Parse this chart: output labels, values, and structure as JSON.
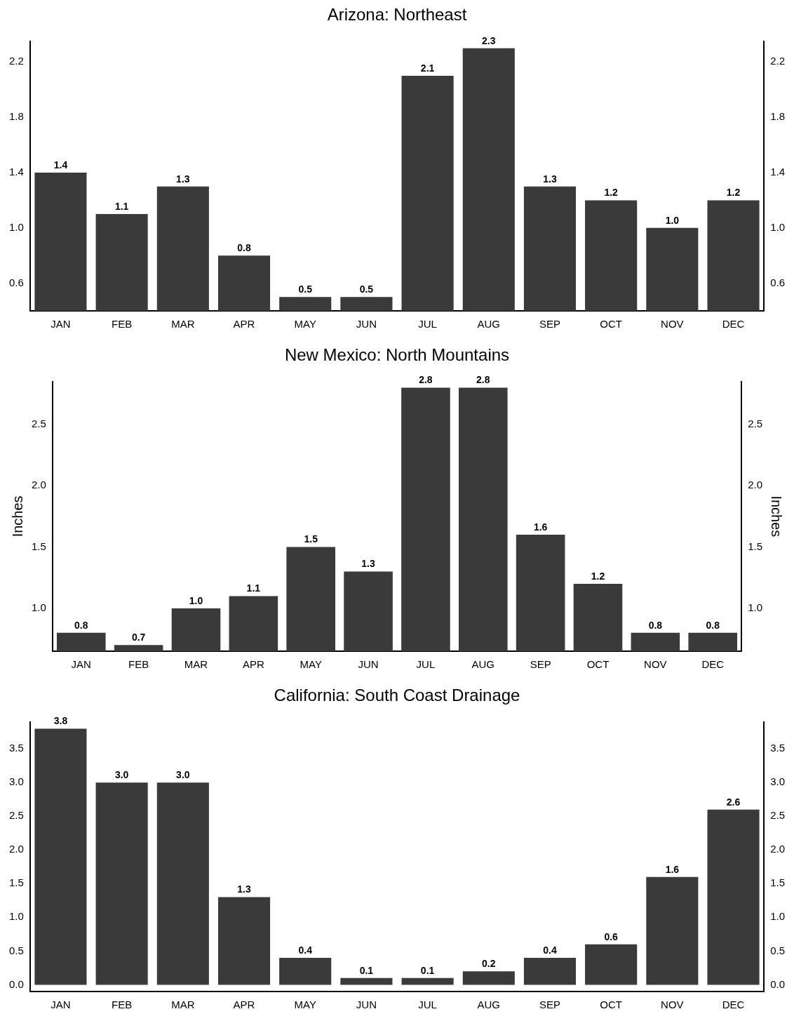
{
  "chart_data": [
    {
      "type": "bar",
      "title": "Arizona: Northeast",
      "categories": [
        "JAN",
        "FEB",
        "MAR",
        "APR",
        "MAY",
        "JUN",
        "JUL",
        "AUG",
        "SEP",
        "OCT",
        "NOV",
        "DEC"
      ],
      "values": [
        1.4,
        1.1,
        1.3,
        0.8,
        0.5,
        0.5,
        2.1,
        2.3,
        1.3,
        1.2,
        1.0,
        1.2
      ],
      "value_labels": [
        "1.4",
        "1.1",
        "1.3",
        "0.8",
        "0.5",
        "0.5",
        "2.1",
        "2.3",
        "1.3",
        "1.2",
        "1.0",
        "1.2"
      ],
      "color": "#3a3a3a",
      "ylim": [
        0.4,
        2.35
      ],
      "yticks": [
        0.6,
        {
          "value": 1,
          "label": "1.0"
        },
        1.4,
        1.8,
        2.2
      ],
      "y2lim": [
        0.4,
        2.35
      ],
      "y2ticks": [
        0.6,
        {
          "value": 1,
          "label": "1.0"
        },
        1.4,
        1.8,
        2.2
      ],
      "grid": false,
      "legend": false
    },
    {
      "type": "bar",
      "title": "New Mexico: North Mountains",
      "ylabel": "Inches",
      "y2label": "Inches",
      "categories": [
        "JAN",
        "FEB",
        "MAR",
        "APR",
        "MAY",
        "JUN",
        "JUL",
        "AUG",
        "SEP",
        "OCT",
        "NOV",
        "DEC"
      ],
      "values": [
        0.8,
        0.7,
        1.0,
        1.1,
        1.5,
        1.3,
        2.8,
        2.8,
        1.6,
        1.2,
        0.8,
        0.8
      ],
      "value_labels": [
        "0.8",
        "0.7",
        "1.0",
        "1.1",
        "1.5",
        "1.3",
        "2.8",
        "2.8",
        "1.6",
        "1.2",
        "0.8",
        "0.8"
      ],
      "color": "#3a3a3a",
      "ylim": [
        0.65,
        2.85
      ],
      "yticks": [
        {
          "value": 1,
          "label": "1.0"
        },
        1.5,
        {
          "value": 2,
          "label": "2.0"
        },
        2.5
      ],
      "y2lim": [
        0.65,
        2.85
      ],
      "y2ticks": [
        {
          "value": 1,
          "label": "1.0"
        },
        1.5,
        {
          "value": 2,
          "label": "2.0"
        },
        2.5
      ],
      "grid": false,
      "legend": false
    },
    {
      "type": "bar",
      "title": "California: South Coast Drainage",
      "categories": [
        "JAN",
        "FEB",
        "MAR",
        "APR",
        "MAY",
        "JUN",
        "JUL",
        "AUG",
        "SEP",
        "OCT",
        "NOV",
        "DEC"
      ],
      "values": [
        3.8,
        3.0,
        3.0,
        1.3,
        0.4,
        0.1,
        0.1,
        0.2,
        0.4,
        0.6,
        1.6,
        2.6
      ],
      "value_labels": [
        "3.8",
        "3.0",
        "3.0",
        "1.3",
        "0.4",
        "0.1",
        "0.1",
        "0.2",
        "0.4",
        "0.6",
        "1.6",
        "2.6"
      ],
      "color": "#3a3a3a",
      "ylim": [
        -0.1,
        3.9
      ],
      "yticks": [
        {
          "value": 0,
          "label": "0.0"
        },
        0.5,
        {
          "value": 1,
          "label": "1.0"
        },
        1.5,
        {
          "value": 2,
          "label": "2.0"
        },
        2.5,
        {
          "value": 3,
          "label": "3.0"
        },
        3.5
      ],
      "y2lim": [
        -0.1,
        3.9
      ],
      "y2ticks": [
        {
          "value": 0,
          "label": "0.0"
        },
        0.5,
        {
          "value": 1,
          "label": "1.0"
        },
        1.5,
        {
          "value": 2,
          "label": "2.0"
        },
        2.5,
        {
          "value": 3,
          "label": "3.0"
        },
        3.5
      ],
      "grid": false,
      "legend": false
    }
  ]
}
